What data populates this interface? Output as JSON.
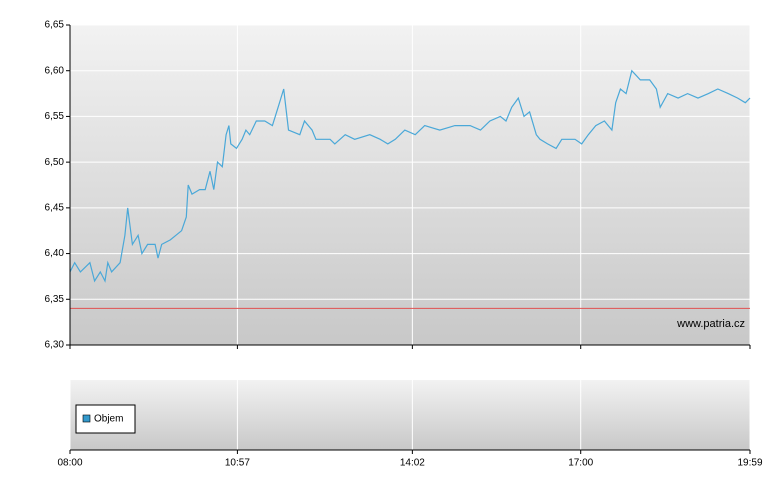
{
  "chart_data": {
    "type": "line",
    "x": [
      "08:00",
      "08:05",
      "08:11",
      "08:21",
      "08:26",
      "08:32",
      "08:37",
      "08:40",
      "08:44",
      "08:53",
      "08:58",
      "09:01",
      "09:06",
      "09:12",
      "09:16",
      "09:22",
      "09:30",
      "09:33",
      "09:37",
      "09:46",
      "09:52",
      "09:58",
      "10:03",
      "10:05",
      "10:09",
      "10:17",
      "10:23",
      "10:28",
      "10:32",
      "10:36",
      "10:41",
      "10:45",
      "10:48",
      "10:50",
      "10:56",
      "11:02",
      "11:06",
      "11:10",
      "11:17",
      "11:26",
      "11:34",
      "11:40",
      "11:46",
      "11:51",
      "12:03",
      "12:08",
      "12:16",
      "12:20",
      "12:35",
      "12:40",
      "12:51",
      "13:01",
      "13:17",
      "13:28",
      "13:36",
      "13:44",
      "13:54",
      "14:05",
      "14:15",
      "14:31",
      "14:47",
      "15:03",
      "15:14",
      "15:24",
      "15:35",
      "15:41",
      "15:47",
      "15:54",
      "16:00",
      "16:06",
      "16:13",
      "16:17",
      "16:25",
      "16:34",
      "16:40",
      "16:54",
      "17:01",
      "17:08",
      "17:16",
      "17:25",
      "17:33",
      "17:37",
      "17:42",
      "17:48",
      "17:54",
      "18:03",
      "18:13",
      "18:20",
      "18:24",
      "18:32",
      "18:43",
      "18:53",
      "19:04",
      "19:15",
      "19:25",
      "19:36",
      "19:46",
      "19:54",
      "19:59"
    ],
    "series": [
      {
        "color": "#4aa8d8",
        "values": [
          6.38,
          6.39,
          6.38,
          6.39,
          6.37,
          6.38,
          6.37,
          6.39,
          6.38,
          6.39,
          6.42,
          6.45,
          6.41,
          6.42,
          6.4,
          6.41,
          6.41,
          6.395,
          6.41,
          6.415,
          6.42,
          6.425,
          6.44,
          6.475,
          6.465,
          6.47,
          6.47,
          6.49,
          6.47,
          6.5,
          6.495,
          6.53,
          6.54,
          6.52,
          6.515,
          6.525,
          6.535,
          6.53,
          6.545,
          6.545,
          6.54,
          6.56,
          6.58,
          6.535,
          6.53,
          6.545,
          6.535,
          6.525,
          6.525,
          6.52,
          6.53,
          6.525,
          6.53,
          6.525,
          6.52,
          6.525,
          6.535,
          6.53,
          6.54,
          6.535,
          6.54,
          6.54,
          6.535,
          6.545,
          6.55,
          6.545,
          6.56,
          6.57,
          6.55,
          6.555,
          6.53,
          6.525,
          6.52,
          6.515,
          6.525,
          6.525,
          6.52,
          6.53,
          6.54,
          6.545,
          6.535,
          6.565,
          6.58,
          6.575,
          6.6,
          6.59,
          6.59,
          6.58,
          6.56,
          6.575,
          6.57,
          6.575,
          6.57,
          6.575,
          6.58,
          6.575,
          6.57,
          6.565,
          6.57
        ]
      }
    ],
    "reference_value": 6.34,
    "reference_color": "#e05050",
    "xlim": [
      "08:00",
      "19:59"
    ],
    "xticks": [
      "08:00",
      "10:57",
      "14:02",
      "17:00",
      "19:59"
    ],
    "ylim": [
      6.3,
      6.65
    ],
    "yticks": [
      {
        "value": 6.3,
        "label": "6,30"
      },
      {
        "value": 6.35,
        "label": "6,35"
      },
      {
        "value": 6.4,
        "label": "6,40"
      },
      {
        "value": 6.45,
        "label": "6,45"
      },
      {
        "value": 6.5,
        "label": "6,50"
      },
      {
        "value": 6.55,
        "label": "6,55"
      },
      {
        "value": 6.6,
        "label": "6,60"
      },
      {
        "value": 6.65,
        "label": "6,65"
      }
    ],
    "grid": true,
    "watermark": "www.patria.cz",
    "volume_legend": "Objem",
    "volume_color": "#3399cc"
  }
}
